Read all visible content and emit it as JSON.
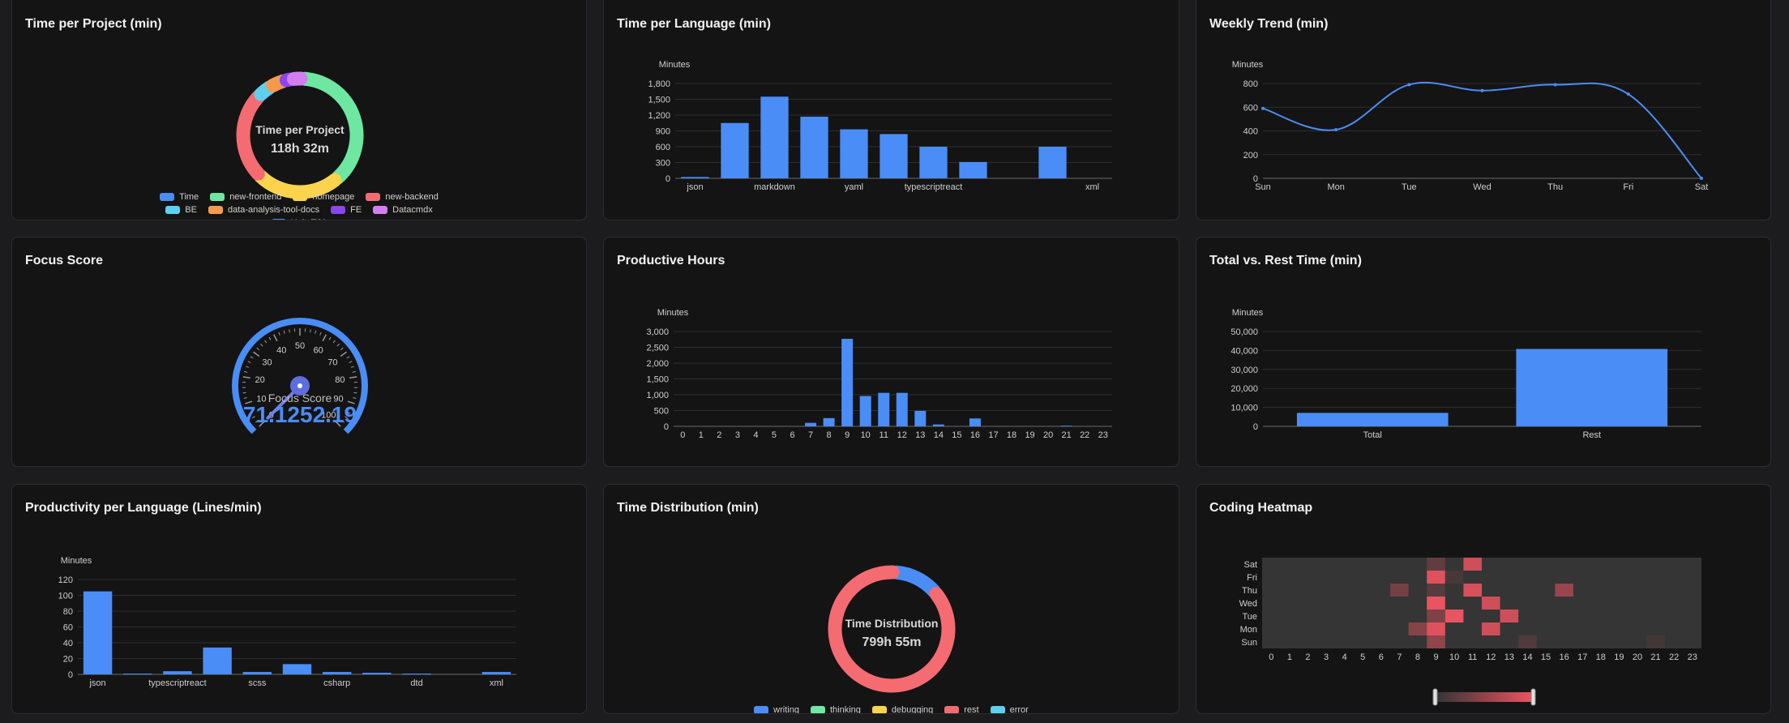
{
  "colors": {
    "blue": "#4a8df6",
    "axis_text": "#cfcfcf",
    "grid": "#2e2e2e",
    "heat_low": "#353535",
    "heat_high": "#e8545f"
  },
  "cards": {
    "project": {
      "title": "Time per Project (min)",
      "center_label": "Time per Project",
      "center_value": "118h 32m"
    },
    "language": {
      "title": "Time per Language (min)"
    },
    "weekly": {
      "title": "Weekly Trend (min)"
    },
    "focus": {
      "title": "Focus Score"
    },
    "hours": {
      "title": "Productive Hours"
    },
    "total_rest": {
      "title": "Total vs. Rest Time (min)"
    },
    "productivity": {
      "title": "Productivity per Language (Lines/min)"
    },
    "distribution": {
      "title": "Time Distribution (min)",
      "center_label": "Time Distribution",
      "center_value": "799h 55m"
    },
    "heatmap": {
      "title": "Coding Heatmap"
    }
  },
  "chart_data": [
    {
      "id": "project",
      "type": "pie",
      "title": "Time per Project (min)",
      "legend": [
        {
          "name": "Time",
          "color": "#4a8df6"
        },
        {
          "name": "new-frontend",
          "color": "#6ee7a1"
        },
        {
          "name": "homepage",
          "color": "#fcd34d"
        },
        {
          "name": "new-backend",
          "color": "#f56b72"
        },
        {
          "name": "BE",
          "color": "#5dd0f0"
        },
        {
          "name": "data-analysis-tool-docs",
          "color": "#f59a4d"
        },
        {
          "name": "FE",
          "color": "#8b45ea"
        },
        {
          "name": "Datacmdx",
          "color": "#d37ef0"
        },
        {
          "name": "UnityTJA",
          "color": "#4a8df6"
        }
      ],
      "slices": [
        {
          "name": "new-frontend",
          "value": 37
        },
        {
          "name": "homepage",
          "value": 23
        },
        {
          "name": "new-backend",
          "value": 24
        },
        {
          "name": "BE",
          "value": 4
        },
        {
          "name": "data-analysis-tool-docs",
          "value": 4
        },
        {
          "name": "FE",
          "value": 2
        },
        {
          "name": "Datacmdx",
          "value": 3
        }
      ]
    },
    {
      "id": "language",
      "type": "bar",
      "title": "Time per Language (min)",
      "ylabel": "Minutes",
      "ylim": [
        0,
        1800
      ],
      "yticks": [
        "0",
        "300",
        "600",
        "900",
        "1,200",
        "1,500",
        "1,800"
      ],
      "categories": [
        "json",
        "",
        "markdown",
        "",
        "yaml",
        "",
        "typescriptreact",
        "",
        "",
        "",
        "xml"
      ],
      "values": [
        25,
        1050,
        1550,
        1170,
        930,
        840,
        600,
        310,
        0,
        600,
        0
      ]
    },
    {
      "id": "weekly",
      "type": "line",
      "title": "Weekly Trend (min)",
      "ylabel": "Minutes",
      "ylim": [
        0,
        800
      ],
      "yticks": [
        "0",
        "200",
        "400",
        "600",
        "800"
      ],
      "categories": [
        "Sun",
        "Mon",
        "Tue",
        "Wed",
        "Thu",
        "Fri",
        "Sat"
      ],
      "values": [
        590,
        410,
        790,
        740,
        790,
        710,
        0
      ]
    },
    {
      "id": "focus",
      "type": "gauge",
      "title": "Focus Score",
      "min": 0,
      "max": 100,
      "value": 0,
      "ticks": [
        "0",
        "10",
        "20",
        "30",
        "40",
        "50",
        "60",
        "70",
        "80",
        "90",
        "100"
      ],
      "label": "Focus Score",
      "value_text": "71.1252.19"
    },
    {
      "id": "hours",
      "type": "bar",
      "title": "Productive Hours",
      "ylabel": "Minutes",
      "ylim": [
        0,
        3000
      ],
      "yticks": [
        "0",
        "500",
        "1,000",
        "1,500",
        "2,000",
        "2,500",
        "3,000"
      ],
      "categories": [
        "0",
        "1",
        "2",
        "3",
        "4",
        "5",
        "6",
        "7",
        "8",
        "9",
        "10",
        "11",
        "12",
        "13",
        "14",
        "15",
        "16",
        "17",
        "18",
        "19",
        "20",
        "21",
        "22",
        "23"
      ],
      "values": [
        0,
        0,
        0,
        0,
        0,
        0,
        0,
        110,
        260,
        2770,
        960,
        1060,
        1060,
        490,
        60,
        0,
        250,
        0,
        0,
        0,
        0,
        20,
        0,
        0
      ]
    },
    {
      "id": "total_rest",
      "type": "bar",
      "title": "Total vs. Rest Time (min)",
      "ylabel": "Minutes",
      "ylim": [
        0,
        50000
      ],
      "yticks": [
        "0",
        "10,000",
        "20,000",
        "30,000",
        "40,000",
        "50,000"
      ],
      "categories": [
        "Total",
        "Rest"
      ],
      "values": [
        7100,
        40800
      ]
    },
    {
      "id": "productivity",
      "type": "bar",
      "title": "Productivity per Language (Lines/min)",
      "ylabel": "Minutes",
      "ylim": [
        0,
        120
      ],
      "yticks": [
        "0",
        "20",
        "40",
        "60",
        "80",
        "100",
        "120"
      ],
      "categories": [
        "json",
        "",
        "typescriptreact",
        "",
        "scss",
        "",
        "csharp",
        "",
        "dtd",
        "",
        "xml"
      ],
      "values": [
        105,
        1,
        4,
        34,
        3,
        13,
        3,
        2,
        1,
        0,
        3
      ]
    },
    {
      "id": "distribution",
      "type": "pie",
      "title": "Time Distribution (min)",
      "legend": [
        {
          "name": "writing",
          "color": "#4a8df6"
        },
        {
          "name": "thinking",
          "color": "#6ee7a1"
        },
        {
          "name": "debugging",
          "color": "#fcd34d"
        },
        {
          "name": "rest",
          "color": "#f56b72"
        },
        {
          "name": "error",
          "color": "#5dd0f0"
        }
      ],
      "slices": [
        {
          "name": "writing",
          "value": 13
        },
        {
          "name": "rest",
          "value": 87
        }
      ]
    },
    {
      "id": "heatmap",
      "type": "heatmap",
      "title": "Coding Heatmap",
      "days": [
        "Sat",
        "Fri",
        "Thu",
        "Wed",
        "Tue",
        "Mon",
        "Sun"
      ],
      "hours": [
        "0",
        "1",
        "2",
        "3",
        "4",
        "5",
        "6",
        "7",
        "8",
        "9",
        "10",
        "11",
        "12",
        "13",
        "14",
        "15",
        "16",
        "17",
        "18",
        "19",
        "20",
        "21",
        "22",
        "23"
      ],
      "cells": [
        {
          "day": "Sat",
          "hour": 9,
          "v": 0.25
        },
        {
          "day": "Sat",
          "hour": 11,
          "v": 0.85
        },
        {
          "day": "Fri",
          "hour": 9,
          "v": 0.95
        },
        {
          "day": "Fri",
          "hour": 10,
          "v": 0.1
        },
        {
          "day": "Thu",
          "hour": 7,
          "v": 0.35
        },
        {
          "day": "Thu",
          "hour": 9,
          "v": 0.2
        },
        {
          "day": "Thu",
          "hour": 11,
          "v": 0.9
        },
        {
          "day": "Thu",
          "hour": 16,
          "v": 0.55
        },
        {
          "day": "Wed",
          "hour": 9,
          "v": 1.0
        },
        {
          "day": "Wed",
          "hour": 12,
          "v": 0.85
        },
        {
          "day": "Tue",
          "hour": 9,
          "v": 0.4
        },
        {
          "day": "Tue",
          "hour": 10,
          "v": 1.0
        },
        {
          "day": "Tue",
          "hour": 13,
          "v": 0.85
        },
        {
          "day": "Mon",
          "hour": 8,
          "v": 0.45
        },
        {
          "day": "Mon",
          "hour": 9,
          "v": 0.95
        },
        {
          "day": "Mon",
          "hour": 12,
          "v": 0.85
        },
        {
          "day": "Sun",
          "hour": 9,
          "v": 0.5
        },
        {
          "day": "Sun",
          "hour": 14,
          "v": 0.15
        },
        {
          "day": "Sun",
          "hour": 21,
          "v": 0.08
        }
      ]
    }
  ]
}
